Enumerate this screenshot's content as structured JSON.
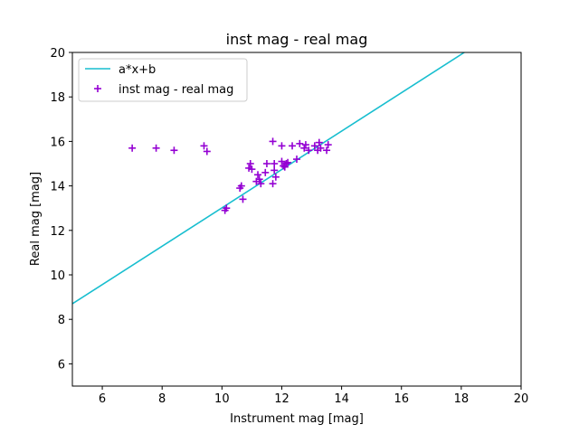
{
  "chart_data": {
    "type": "scatter",
    "title": "inst mag - real mag",
    "xlabel": "Instrument mag [mag]",
    "ylabel": "Real mag [mag]",
    "xlim": [
      5,
      20
    ],
    "ylim": [
      5,
      20
    ],
    "xticks": [
      6,
      8,
      10,
      12,
      14,
      16,
      18,
      20
    ],
    "yticks": [
      6,
      8,
      10,
      12,
      14,
      16,
      18,
      20
    ],
    "grid": false,
    "legend_position": "top-left",
    "series": [
      {
        "name": "a*x+b",
        "kind": "line",
        "color": "#17becf",
        "x": [
          5,
          18.1
        ],
        "y": [
          8.7,
          20.0
        ]
      },
      {
        "name": "inst mag - real mag",
        "kind": "scatter",
        "marker": "+",
        "color": "#9400d3",
        "x": [
          7.0,
          7.8,
          8.4,
          9.4,
          9.5,
          10.1,
          10.15,
          10.6,
          10.65,
          10.7,
          10.9,
          10.95,
          11.0,
          11.15,
          11.2,
          11.25,
          11.3,
          11.45,
          11.5,
          11.7,
          11.7,
          11.75,
          11.75,
          11.8,
          12.0,
          12.0,
          12.05,
          12.1,
          12.15,
          12.2,
          12.35,
          12.5,
          12.6,
          12.75,
          12.8,
          12.9,
          13.1,
          13.2,
          13.25,
          13.3,
          13.5,
          13.55
        ],
        "y": [
          15.7,
          15.7,
          15.6,
          15.8,
          15.55,
          12.9,
          13.0,
          13.9,
          14.0,
          13.4,
          14.8,
          15.0,
          14.75,
          14.2,
          14.5,
          14.3,
          14.1,
          14.6,
          15.0,
          14.1,
          16.0,
          14.7,
          15.0,
          14.4,
          15.8,
          15.1,
          14.9,
          14.85,
          15.0,
          15.05,
          15.8,
          15.2,
          15.9,
          15.7,
          15.85,
          15.6,
          15.8,
          15.6,
          15.95,
          15.7,
          15.6,
          15.85
        ]
      }
    ]
  }
}
